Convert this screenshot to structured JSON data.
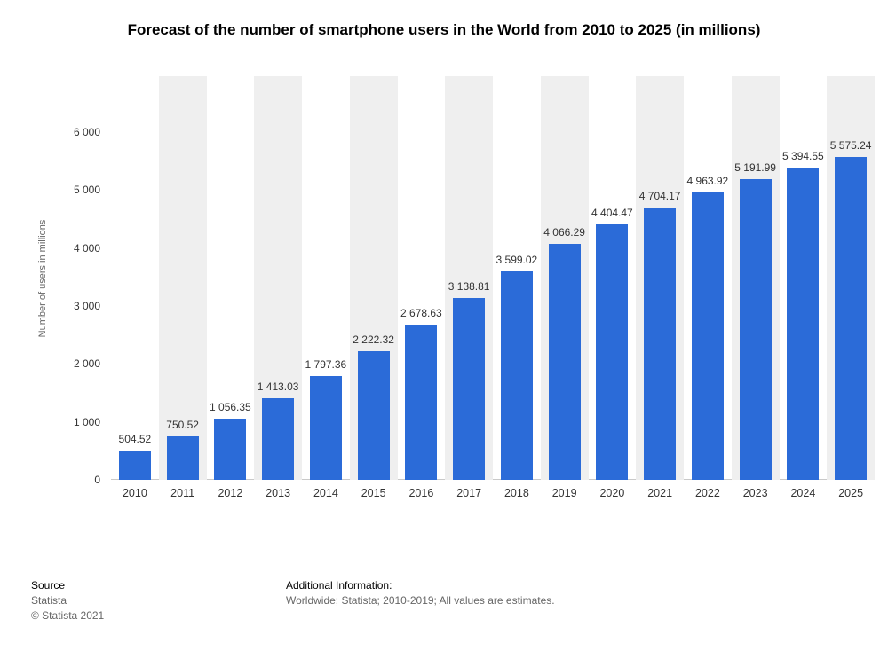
{
  "chart_data": {
    "type": "bar",
    "title": "Forecast of the number of smartphone users in the World from 2010 to 2025 (in millions)",
    "categories": [
      "2010",
      "2011",
      "2012",
      "2013",
      "2014",
      "2015",
      "2016",
      "2017",
      "2018",
      "2019",
      "2020",
      "2021",
      "2022",
      "2023",
      "2024",
      "2025"
    ],
    "values": [
      504.52,
      750.52,
      1056.35,
      1413.03,
      1797.36,
      2222.32,
      2678.63,
      3138.81,
      3599.02,
      4066.29,
      4404.47,
      4704.17,
      4963.92,
      5191.99,
      5394.55,
      5575.24
    ],
    "value_labels": [
      "504.52",
      "750.52",
      "1 056.35",
      "1 413.03",
      "1 797.36",
      "2 222.32",
      "2 678.63",
      "3 138.81",
      "3 599.02",
      "4 066.29",
      "4 404.47",
      "4 704.17",
      "4 963.92",
      "5 191.99",
      "5 394.55",
      "5 575.24"
    ],
    "xlabel": "",
    "ylabel": "Number of users in millions",
    "y_ticks": [
      0,
      1000,
      2000,
      3000,
      4000,
      5000,
      6000
    ],
    "y_tick_labels": [
      "0",
      "1 000",
      "2 000",
      "3 000",
      "4 000",
      "5 000",
      "6 000"
    ],
    "ylim": [
      0,
      6000
    ],
    "grid": false,
    "legend": "none",
    "bar_color": "#2b6bd8",
    "stripe_color": "#efefef",
    "label_color": "#333333"
  },
  "footer": {
    "source_label": "Source",
    "source_name": "Statista",
    "copyright": "© Statista 2021",
    "additional_label": "Additional Information:",
    "additional_text": "Worldwide; Statista; 2010-2019; All values are estimates."
  }
}
